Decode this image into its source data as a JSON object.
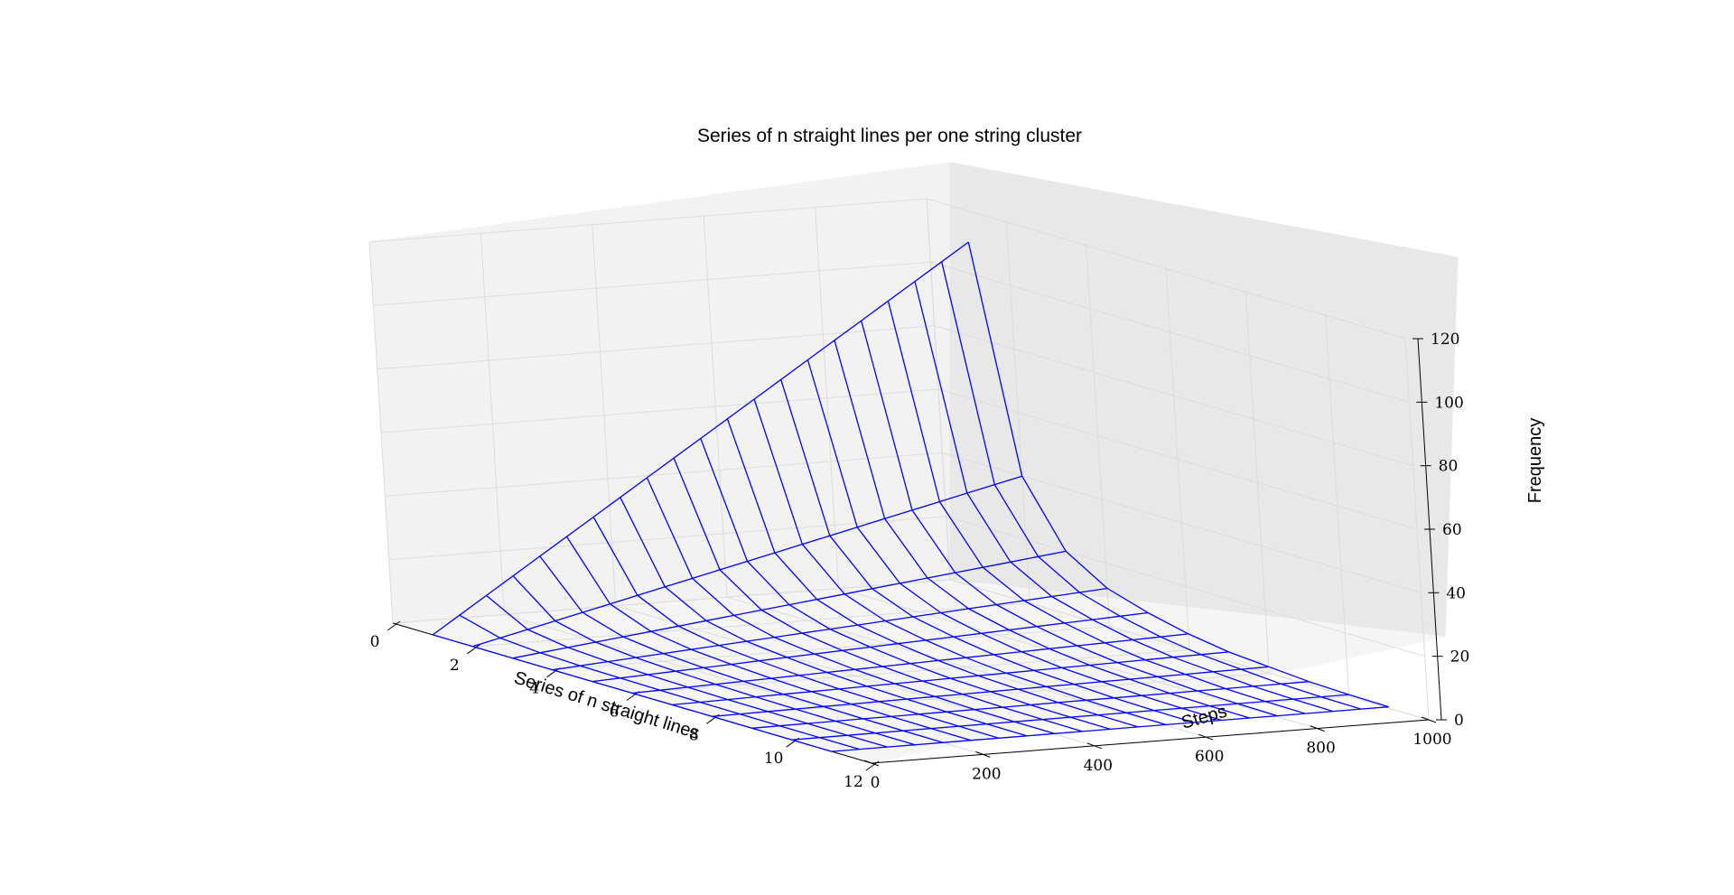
{
  "chart_data": {
    "type": "surface-wireframe-3d",
    "title": "Series of n straight lines per one string cluster",
    "x_axis": {
      "label": "Series of n straight lines",
      "ticks": [
        "0",
        "2",
        "4",
        "6",
        "8",
        "10",
        "12"
      ],
      "range": [
        0,
        12
      ]
    },
    "y_axis": {
      "label": "Steps",
      "ticks": [
        "0",
        "200",
        "400",
        "600",
        "800",
        "1000"
      ],
      "range": [
        0,
        1000
      ]
    },
    "z_axis": {
      "label": "Frequency",
      "ticks": [
        "0",
        "20",
        "40",
        "60",
        "80",
        "100",
        "120"
      ],
      "range": [
        0,
        120
      ]
    },
    "grid": true,
    "wire_color": "#0000ff",
    "surface": {
      "n_values": [
        1,
        2,
        3,
        4,
        5,
        6,
        7,
        8,
        9,
        10,
        11
      ],
      "steps": [
        0,
        50,
        100,
        150,
        200,
        250,
        300,
        350,
        400,
        450,
        500,
        550,
        600,
        650,
        700,
        750,
        800,
        850,
        900,
        950,
        1000
      ],
      "frequency_by_n": [
        [
          0,
          5.5,
          11,
          16.5,
          22,
          27.5,
          33,
          38.5,
          44,
          49.5,
          55,
          60.5,
          66,
          71.5,
          77,
          82.5,
          88,
          93.5,
          99,
          104.5,
          110
        ],
        [
          0,
          2,
          4,
          6,
          8,
          10,
          12,
          14,
          16,
          18,
          20,
          22,
          24,
          26,
          28,
          30,
          32,
          34,
          36,
          38,
          40
        ],
        [
          0,
          1,
          2,
          3,
          4,
          5,
          6,
          7,
          8,
          9,
          10,
          11,
          12,
          13,
          14,
          15,
          16,
          17,
          18,
          19,
          20
        ],
        [
          0,
          0.6,
          1.2,
          1.8,
          2.4,
          3,
          3.6,
          4.2,
          4.8,
          5.4,
          6,
          6.6,
          7.2,
          7.8,
          8.4,
          9,
          9.6,
          10.2,
          10.8,
          11.4,
          12
        ],
        [
          0,
          0.4,
          0.8,
          1.2,
          1.6,
          2,
          2.4,
          2.8,
          3.2,
          3.6,
          4,
          4.4,
          4.8,
          5.2,
          5.6,
          6,
          6.4,
          6.8,
          7.2,
          7.6,
          8
        ],
        [
          0,
          0.25,
          0.5,
          0.75,
          1,
          1.25,
          1.5,
          1.75,
          2,
          2.25,
          2.5,
          2.75,
          3,
          3.25,
          3.5,
          3.75,
          4,
          4.25,
          4.5,
          4.75,
          5
        ],
        [
          0,
          0.15,
          0.3,
          0.45,
          0.6,
          0.75,
          0.9,
          1.05,
          1.2,
          1.35,
          1.5,
          1.65,
          1.8,
          1.95,
          2.1,
          2.25,
          2.4,
          2.55,
          2.7,
          2.85,
          3
        ],
        [
          0,
          0.1,
          0.2,
          0.3,
          0.4,
          0.5,
          0.6,
          0.7,
          0.8,
          0.9,
          1,
          1.1,
          1.2,
          1.3,
          1.4,
          1.5,
          1.6,
          1.7,
          1.8,
          1.9,
          2
        ],
        [
          0,
          0.05,
          0.1,
          0.15,
          0.2,
          0.25,
          0.3,
          0.35,
          0.4,
          0.45,
          0.5,
          0.55,
          0.6,
          0.65,
          0.7,
          0.75,
          0.8,
          0.85,
          0.9,
          0.95,
          1
        ],
        [
          0,
          0.03,
          0.06,
          0.09,
          0.12,
          0.15,
          0.18,
          0.21,
          0.24,
          0.27,
          0.3,
          0.33,
          0.36,
          0.39,
          0.42,
          0.45,
          0.48,
          0.51,
          0.54,
          0.57,
          0.6
        ],
        [
          0,
          0.02,
          0.04,
          0.06,
          0.08,
          0.1,
          0.12,
          0.14,
          0.16,
          0.18,
          0.2,
          0.22,
          0.24,
          0.26,
          0.28,
          0.3,
          0.32,
          0.34,
          0.36,
          0.38,
          0.4
        ]
      ]
    }
  }
}
